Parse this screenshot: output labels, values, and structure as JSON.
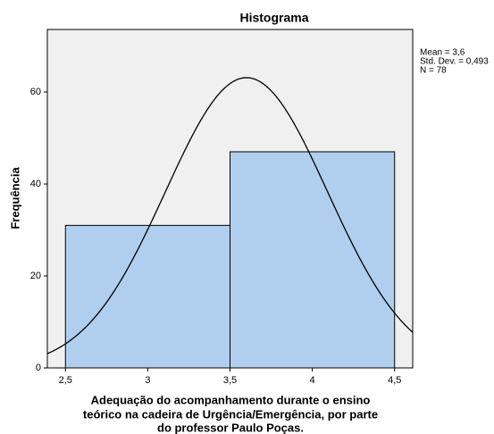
{
  "chart_data": {
    "type": "histogram",
    "title": "Histograma",
    "x_label": [
      "Adequação do acompanhamento durante o ensino",
      "teórico na cadeira de Urgência/Emergência, por parte",
      "do professor Paulo Poças."
    ],
    "y_label": "Frequência",
    "bins": [
      2.5,
      3.5,
      4.5
    ],
    "counts": [
      31,
      47
    ],
    "color": "#b0cfee",
    "xlim": [
      2.39,
      4.61
    ],
    "xticks": [
      {
        "value": 2.5,
        "label": "2,5"
      },
      3,
      {
        "value": 3.5,
        "label": "3,5"
      },
      4,
      {
        "value": 4.5,
        "label": "4,5"
      }
    ],
    "ylim": [
      0,
      73.6
    ],
    "yticks": [
      0,
      20,
      40,
      60
    ],
    "stats_labels": [
      "Mean = 3,6",
      "Std. Dev. = 0,493",
      "N = 78"
    ],
    "normal_curve": {
      "mean": 3.6,
      "sd": 0.493,
      "n": 78
    }
  }
}
